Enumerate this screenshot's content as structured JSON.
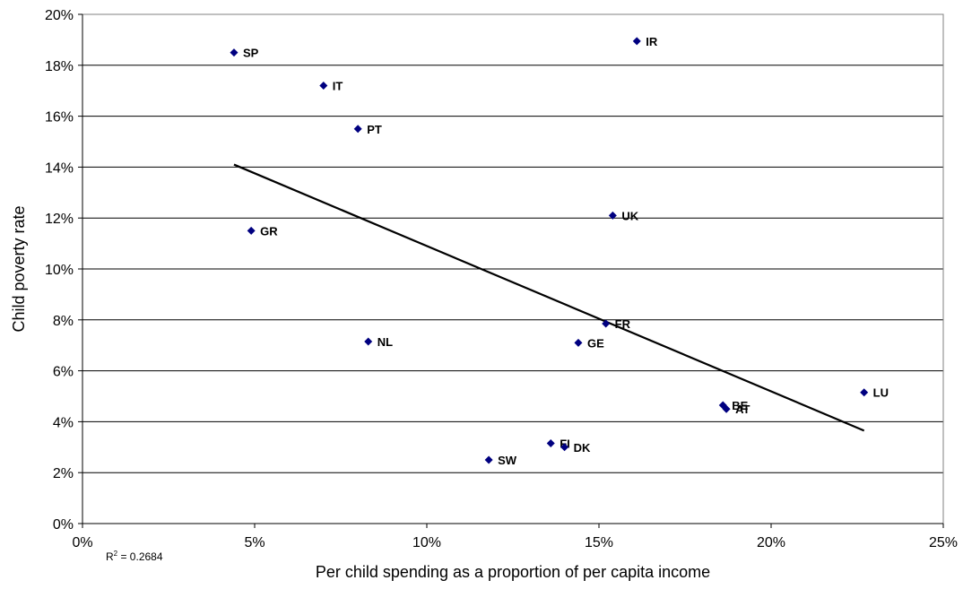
{
  "chart_data": {
    "type": "scatter",
    "title": "",
    "xlabel": "Per child spending as a proportion of per capita income",
    "ylabel": "Child poverty rate",
    "xlim": [
      0,
      25
    ],
    "ylim": [
      0,
      20
    ],
    "x_ticks": [
      0,
      5,
      10,
      15,
      20,
      25
    ],
    "y_ticks": [
      0,
      2,
      4,
      6,
      8,
      10,
      12,
      14,
      16,
      18,
      20
    ],
    "x_tick_labels": [
      "0%",
      "5%",
      "10%",
      "15%",
      "20%",
      "25%"
    ],
    "y_tick_labels": [
      "0%",
      "2%",
      "4%",
      "6%",
      "8%",
      "10%",
      "12%",
      "14%",
      "16%",
      "18%",
      "20%"
    ],
    "grid": "horizontal",
    "points": [
      {
        "label": "SP",
        "x": 4.4,
        "y": 18.5
      },
      {
        "label": "IT",
        "x": 7.0,
        "y": 17.2
      },
      {
        "label": "PT",
        "x": 8.0,
        "y": 15.5
      },
      {
        "label": "GR",
        "x": 4.9,
        "y": 11.5
      },
      {
        "label": "NL",
        "x": 8.3,
        "y": 7.15
      },
      {
        "label": "IR",
        "x": 16.1,
        "y": 18.95
      },
      {
        "label": "UK",
        "x": 15.4,
        "y": 12.1
      },
      {
        "label": "FR",
        "x": 15.2,
        "y": 7.85
      },
      {
        "label": "GE",
        "x": 14.4,
        "y": 7.1
      },
      {
        "label": "FI",
        "x": 13.6,
        "y": 3.15
      },
      {
        "label": "DK",
        "x": 14.0,
        "y": 3.0
      },
      {
        "label": "SW",
        "x": 11.8,
        "y": 2.5
      },
      {
        "label": "BE",
        "x": 18.6,
        "y": 4.65
      },
      {
        "label": "AT",
        "x": 18.7,
        "y": 4.5
      },
      {
        "label": "LU",
        "x": 22.7,
        "y": 5.15
      }
    ],
    "trendline": {
      "x": [
        4.4,
        22.7
      ],
      "y": [
        14.1,
        3.65
      ]
    },
    "r2_label": "= 0.2684",
    "marker_color": "#000080",
    "line_color": "#000000"
  }
}
